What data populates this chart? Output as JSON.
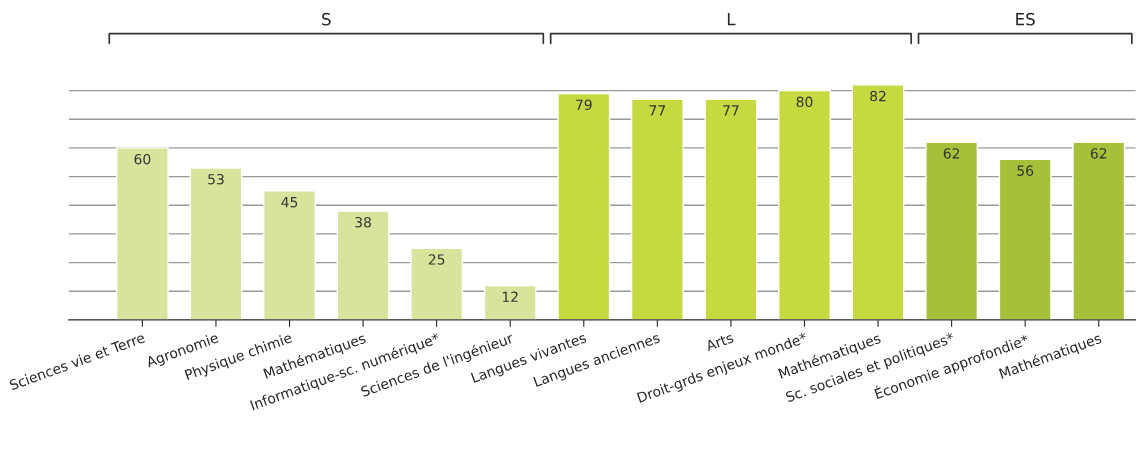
{
  "chart_data": {
    "type": "bar",
    "categories": [
      "Sciences vie et Terre",
      "Agronomie",
      "Physique chimie",
      "Mathématiques",
      "Informatique-sc. numérique*",
      "Sciences de l'ingénieur",
      "Langues vivantes",
      "Langues anciennes",
      "Arts",
      "Droit-grds enjeux monde*",
      "Mathématiques",
      "Sc. sociales et politiques*",
      "Économie approfondie*",
      "Mathématiques"
    ],
    "series": [
      {
        "color": "#d7e59c",
        "values": [
          60,
          53,
          45,
          38,
          25,
          12,
          null,
          null,
          null,
          null,
          null,
          null,
          null,
          null
        ]
      },
      {
        "color": "#c6d940",
        "values": [
          null,
          null,
          null,
          null,
          null,
          null,
          79,
          77,
          77,
          80,
          82,
          null,
          null,
          null
        ]
      },
      {
        "color": "#a6c03a",
        "values": [
          null,
          null,
          null,
          null,
          null,
          null,
          null,
          null,
          null,
          null,
          null,
          62,
          56,
          62
        ]
      }
    ],
    "annotations": [
      "S",
      "L",
      "ES"
    ],
    "yticks": [
      {
        "value": 0,
        "label": null
      },
      {
        "value": 10,
        "label": null
      },
      {
        "value": 20,
        "label": null
      },
      {
        "value": 30,
        "label": null
      },
      {
        "value": 40,
        "label": null
      },
      {
        "value": 50,
        "label": null
      },
      {
        "value": 60,
        "label": null
      },
      {
        "value": 70,
        "label": null
      },
      {
        "value": 80,
        "label": null
      }
    ],
    "tick_labels": "x",
    "grid": "y",
    "data_labels": true
  }
}
